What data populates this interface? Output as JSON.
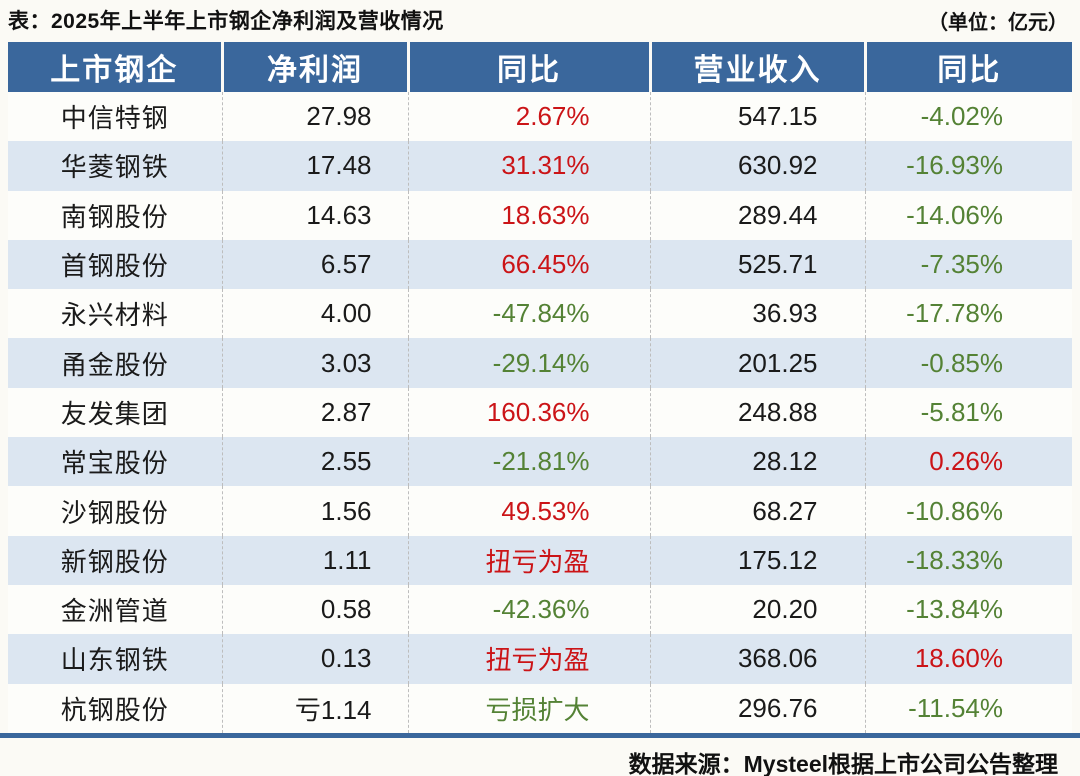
{
  "title": "表：2025年上半年上市钢企净利润及营收情况",
  "unit_label": "（单位：亿元）",
  "source": "数据来源：Mysteel根据上市公司公告整理",
  "colors": {
    "header_bg": "#3a679c",
    "alt_row_bg": "#dce6f1",
    "up_red": "#cb1417",
    "down_green": "#548235",
    "bottom_rule": "#3a679c",
    "page_bg": "#fbfaf5"
  },
  "chart_data": {
    "type": "table",
    "title": "2025年上半年上市钢企净利润及营收情况",
    "unit": "亿元",
    "columns": [
      "上市钢企",
      "净利润",
      "同比",
      "营业收入",
      "同比"
    ],
    "rows": [
      {
        "company": "中信特钢",
        "net_profit": "27.98",
        "net_profit_color": "black",
        "profit_yoy": "2.67%",
        "profit_yoy_color": "red",
        "revenue": "547.15",
        "revenue_yoy": "-4.02%",
        "revenue_yoy_color": "green"
      },
      {
        "company": "华菱钢铁",
        "net_profit": "17.48",
        "net_profit_color": "black",
        "profit_yoy": "31.31%",
        "profit_yoy_color": "red",
        "revenue": "630.92",
        "revenue_yoy": "-16.93%",
        "revenue_yoy_color": "green"
      },
      {
        "company": "南钢股份",
        "net_profit": "14.63",
        "net_profit_color": "black",
        "profit_yoy": "18.63%",
        "profit_yoy_color": "red",
        "revenue": "289.44",
        "revenue_yoy": "-14.06%",
        "revenue_yoy_color": "green"
      },
      {
        "company": "首钢股份",
        "net_profit": "6.57",
        "net_profit_color": "black",
        "profit_yoy": "66.45%",
        "profit_yoy_color": "red",
        "revenue": "525.71",
        "revenue_yoy": "-7.35%",
        "revenue_yoy_color": "green"
      },
      {
        "company": "永兴材料",
        "net_profit": "4.00",
        "net_profit_color": "black",
        "profit_yoy": "-47.84%",
        "profit_yoy_color": "green",
        "revenue": "36.93",
        "revenue_yoy": "-17.78%",
        "revenue_yoy_color": "green"
      },
      {
        "company": "甬金股份",
        "net_profit": "3.03",
        "net_profit_color": "black",
        "profit_yoy": "-29.14%",
        "profit_yoy_color": "green",
        "revenue": "201.25",
        "revenue_yoy": "-0.85%",
        "revenue_yoy_color": "green"
      },
      {
        "company": "友发集团",
        "net_profit": "2.87",
        "net_profit_color": "black",
        "profit_yoy": "160.36%",
        "profit_yoy_color": "red",
        "revenue": "248.88",
        "revenue_yoy": "-5.81%",
        "revenue_yoy_color": "green"
      },
      {
        "company": "常宝股份",
        "net_profit": "2.55",
        "net_profit_color": "black",
        "profit_yoy": "-21.81%",
        "profit_yoy_color": "green",
        "revenue": "28.12",
        "revenue_yoy": "0.26%",
        "revenue_yoy_color": "red"
      },
      {
        "company": "沙钢股份",
        "net_profit": "1.56",
        "net_profit_color": "black",
        "profit_yoy": "49.53%",
        "profit_yoy_color": "red",
        "revenue": "68.27",
        "revenue_yoy": "-10.86%",
        "revenue_yoy_color": "green"
      },
      {
        "company": "新钢股份",
        "net_profit": "1.11",
        "net_profit_color": "black",
        "profit_yoy": "扭亏为盈",
        "profit_yoy_color": "red",
        "revenue": "175.12",
        "revenue_yoy": "-18.33%",
        "revenue_yoy_color": "green"
      },
      {
        "company": "金洲管道",
        "net_profit": "0.58",
        "net_profit_color": "black",
        "profit_yoy": "-42.36%",
        "profit_yoy_color": "green",
        "revenue": "20.20",
        "revenue_yoy": "-13.84%",
        "revenue_yoy_color": "green"
      },
      {
        "company": "山东钢铁",
        "net_profit": "0.13",
        "net_profit_color": "black",
        "profit_yoy": "扭亏为盈",
        "profit_yoy_color": "red",
        "revenue": "368.06",
        "revenue_yoy": "18.60%",
        "revenue_yoy_color": "red"
      },
      {
        "company": "杭钢股份",
        "net_profit": "亏1.14",
        "net_profit_color": "black",
        "profit_yoy": "亏损扩大",
        "profit_yoy_color": "green",
        "revenue": "296.76",
        "revenue_yoy": "-11.54%",
        "revenue_yoy_color": "green"
      }
    ]
  }
}
